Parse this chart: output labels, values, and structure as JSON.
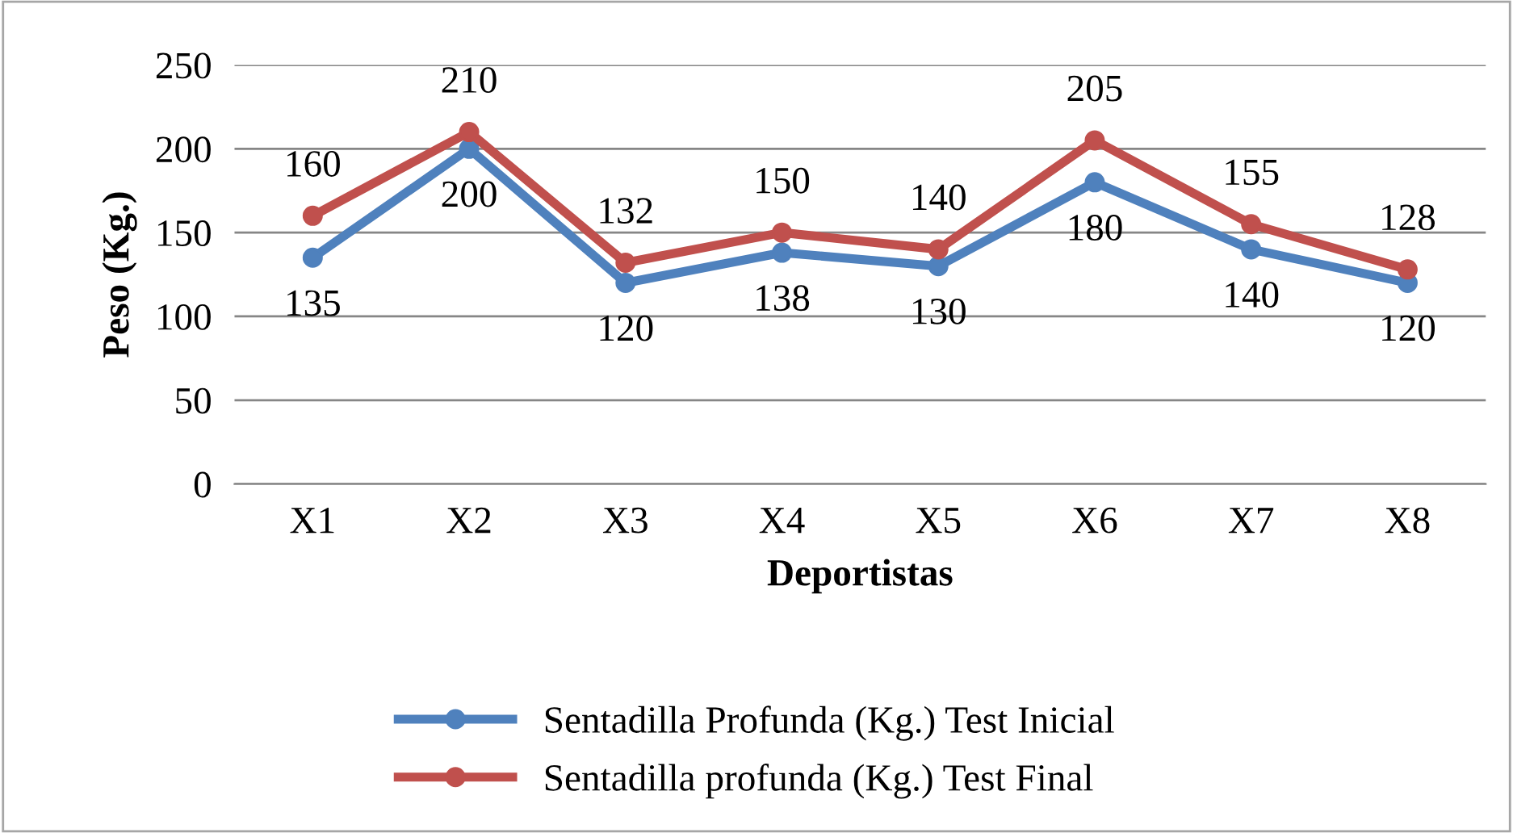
{
  "chart_data": {
    "type": "line",
    "xlabel": "Deportistas",
    "ylabel": "Peso (Kg.)",
    "categories": [
      "X1",
      "X2",
      "X3",
      "X4",
      "X5",
      "X6",
      "X7",
      "X8"
    ],
    "series": [
      {
        "name": "Sentadilla Profunda (Kg.) Test Inicial",
        "color": "#4f81bd",
        "values": [
          135,
          200,
          120,
          138,
          130,
          180,
          140,
          120
        ]
      },
      {
        "name": "Sentadilla profunda (Kg.) Test Final",
        "color": "#c0504d",
        "values": [
          160,
          210,
          132,
          150,
          140,
          205,
          155,
          128
        ]
      }
    ],
    "ylim": [
      0,
      250
    ],
    "yticks": [
      0,
      50,
      100,
      150,
      200,
      250
    ],
    "grid": "y",
    "legend": "bottom",
    "marker": "circle",
    "line_style": "solid",
    "data_labels": true
  }
}
